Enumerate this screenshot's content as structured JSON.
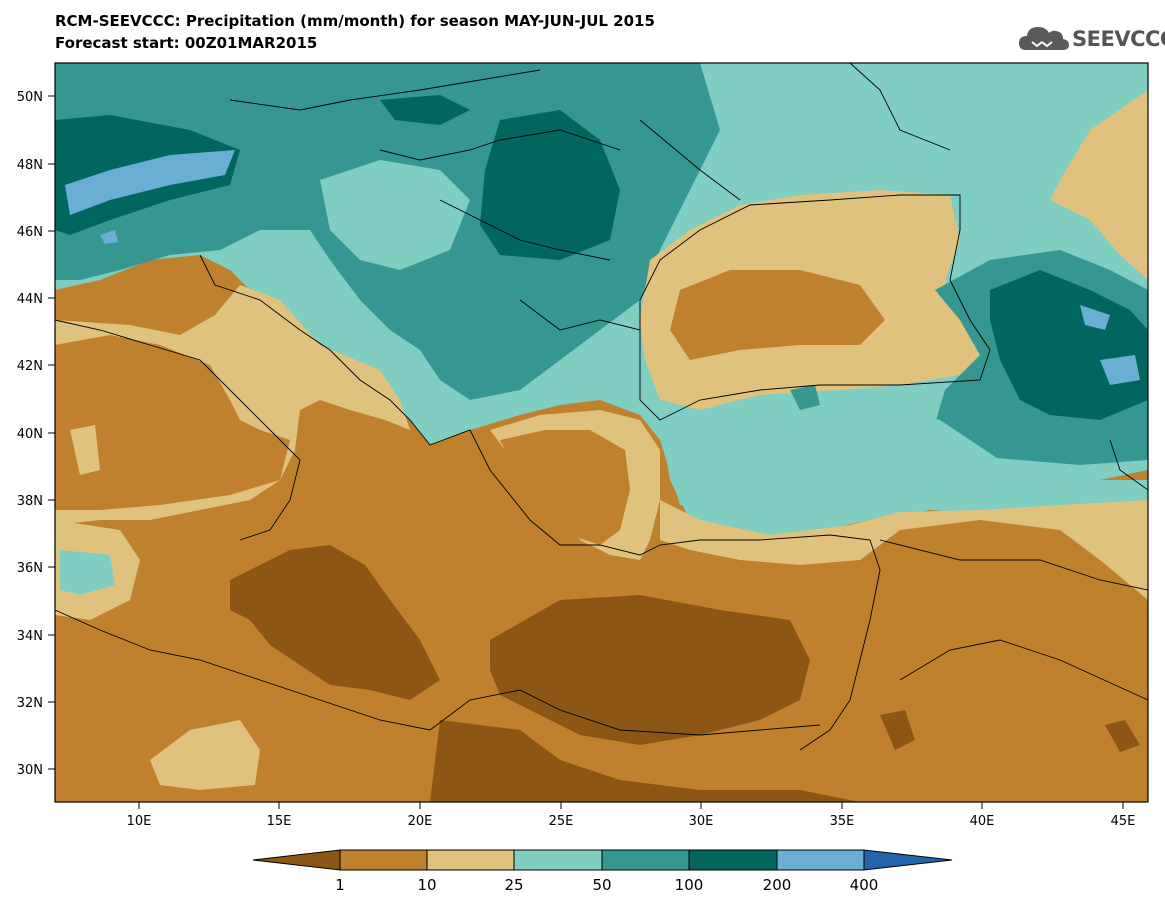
{
  "header": {
    "title": "RCM-SEEVCCC: Precipitation (mm/month) for season MAY-JUN-JUL 2015",
    "subtitle": "Forecast start: 00Z01MAR2015"
  },
  "logo": {
    "text": "SEEVCCC",
    "icon": "cloud-icon"
  },
  "map": {
    "lat_labels": [
      "50N",
      "48N",
      "46N",
      "44N",
      "42N",
      "40N",
      "38N",
      "36N",
      "34N",
      "32N",
      "30N"
    ],
    "lon_labels": [
      "10E",
      "15E",
      "20E",
      "25E",
      "30E",
      "35E",
      "40E",
      "45E"
    ],
    "colorbar": {
      "labels": [
        "1",
        "10",
        "25",
        "50",
        "100",
        "200",
        "400"
      ],
      "colors": [
        "#8c5614",
        "#bf812d",
        "#dfc27d",
        "#80cdc1",
        "#35978f",
        "#01665e",
        "#6aaed6",
        "#2166ac"
      ]
    }
  }
}
